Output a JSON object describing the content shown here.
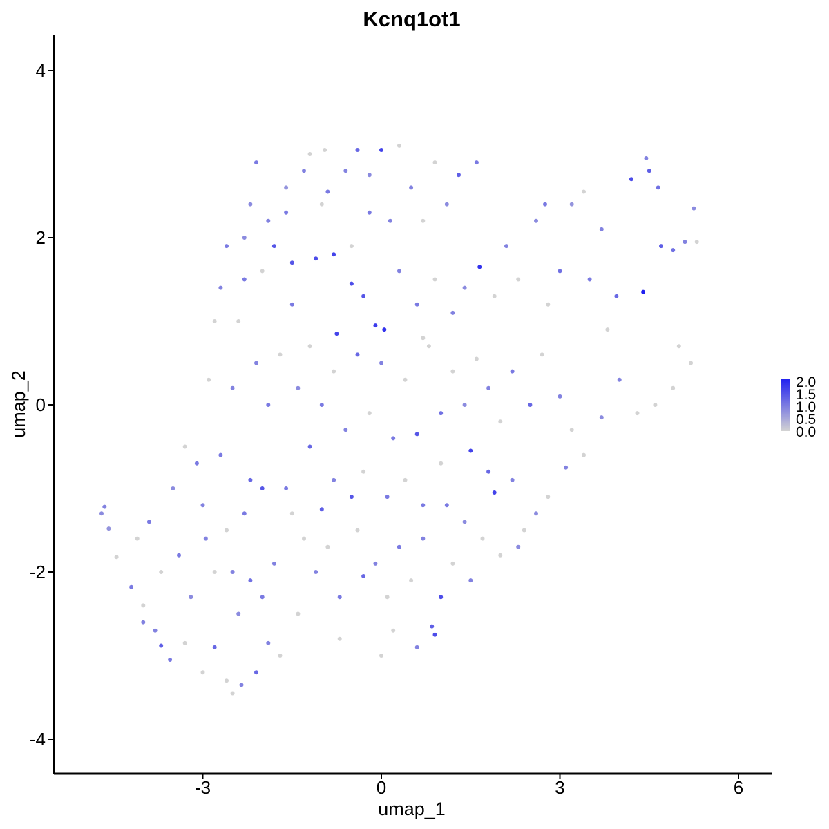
{
  "chart_data": {
    "type": "scatter",
    "title": "Kcnq1ot1",
    "xlabel": "umap_1",
    "ylabel": "umap_2",
    "xlim": [
      -5.5,
      6.6
    ],
    "ylim": [
      -4.4,
      4.4
    ],
    "xticks": [
      -3,
      0,
      3,
      6
    ],
    "xtick_labels": [
      "-3",
      "0",
      "3",
      "6"
    ],
    "yticks": [
      -4,
      -2,
      0,
      2,
      4
    ],
    "ytick_labels": [
      "-4",
      "-2",
      "0",
      "2",
      "4"
    ],
    "grid": false,
    "color_scale": {
      "low": "#d3d3d3",
      "high": "#2020f0",
      "min": 0,
      "max": 2.0,
      "breaks": [
        0.0,
        0.5,
        1.0,
        1.5,
        2.0
      ],
      "labels": [
        "0.0",
        "0.5",
        "1.0",
        "1.5",
        "2.0"
      ],
      "legend_position": "right"
    },
    "points": [
      [
        -4.7,
        -1.3,
        0.8
      ],
      [
        -4.65,
        -1.22,
        0.9
      ],
      [
        -4.58,
        -1.48,
        0.7
      ],
      [
        -4.45,
        -1.82,
        0.0
      ],
      [
        -4.2,
        -2.18,
        1.0
      ],
      [
        -4.0,
        -2.6,
        0.9
      ],
      [
        -3.7,
        -2.88,
        1.3
      ],
      [
        -3.55,
        -3.05,
        1.0
      ],
      [
        -3.4,
        -1.8,
        1.0
      ],
      [
        -3.2,
        -2.3,
        0.8
      ],
      [
        -3.1,
        -0.7,
        1.0
      ],
      [
        -2.95,
        -1.6,
        0.9
      ],
      [
        -2.8,
        -2.9,
        1.2
      ],
      [
        -2.6,
        -3.3,
        0.0
      ],
      [
        -2.5,
        -3.45,
        0.0
      ],
      [
        -2.35,
        -3.35,
        0.9
      ],
      [
        -2.2,
        -2.1,
        1.1
      ],
      [
        -2.1,
        -3.2,
        1.2
      ],
      [
        -2.0,
        -2.3,
        1.0
      ],
      [
        -1.9,
        -2.85,
        0.9
      ],
      [
        -1.7,
        -3.0,
        0.0
      ],
      [
        -2.7,
        -0.6,
        1.0
      ],
      [
        -2.5,
        0.2,
        0.9
      ],
      [
        -2.3,
        1.5,
        1.0
      ],
      [
        -2.2,
        2.4,
        0.8
      ],
      [
        -2.1,
        2.9,
        1.0
      ],
      [
        -1.9,
        2.2,
        0.9
      ],
      [
        -1.8,
        1.9,
        1.4
      ],
      [
        -1.6,
        2.6,
        0.7
      ],
      [
        -1.5,
        1.7,
        1.4
      ],
      [
        -1.3,
        2.8,
        0.9
      ],
      [
        -1.2,
        3.0,
        0.0
      ],
      [
        -1.1,
        1.75,
        1.5
      ],
      [
        -0.95,
        3.05,
        0.0
      ],
      [
        -0.9,
        2.55,
        1.0
      ],
      [
        -0.8,
        1.8,
        1.6
      ],
      [
        -0.75,
        0.85,
        1.6
      ],
      [
        -0.6,
        2.8,
        0.9
      ],
      [
        -0.5,
        1.45,
        1.5
      ],
      [
        -0.4,
        3.05,
        1.2
      ],
      [
        -0.3,
        1.3,
        1.4
      ],
      [
        -0.2,
        2.75,
        0.8
      ],
      [
        -0.1,
        0.95,
        1.7
      ],
      [
        0.0,
        3.05,
        1.6
      ],
      [
        0.05,
        0.9,
        1.8
      ],
      [
        0.15,
        2.2,
        0.9
      ],
      [
        0.3,
        3.1,
        0.0
      ],
      [
        0.5,
        2.6,
        0.9
      ],
      [
        0.7,
        2.2,
        0.0
      ],
      [
        0.9,
        2.9,
        0.0
      ],
      [
        1.1,
        2.4,
        0.8
      ],
      [
        1.3,
        2.75,
        1.3
      ],
      [
        1.6,
        2.9,
        1.0
      ],
      [
        1.65,
        1.65,
        1.8
      ],
      [
        1.9,
        1.3,
        0.0
      ],
      [
        2.1,
        1.9,
        0.9
      ],
      [
        2.3,
        1.5,
        0.0
      ],
      [
        2.6,
        2.2,
        0.8
      ],
      [
        2.75,
        2.4,
        1.0
      ],
      [
        2.8,
        1.2,
        0.0
      ],
      [
        3.0,
        1.6,
        1.1
      ],
      [
        3.2,
        2.4,
        0.7
      ],
      [
        3.4,
        2.55,
        0.0
      ],
      [
        3.5,
        1.5,
        1.0
      ],
      [
        3.7,
        2.1,
        0.9
      ],
      [
        3.8,
        0.9,
        0.0
      ],
      [
        3.95,
        1.3,
        1.2
      ],
      [
        4.2,
        2.7,
        1.5
      ],
      [
        4.4,
        1.35,
        2.0
      ],
      [
        4.45,
        2.95,
        0.9
      ],
      [
        4.5,
        2.8,
        1.3
      ],
      [
        4.65,
        2.6,
        1.1
      ],
      [
        4.7,
        1.9,
        1.3
      ],
      [
        4.9,
        1.85,
        1.1
      ],
      [
        5.0,
        0.7,
        0.0
      ],
      [
        5.1,
        1.95,
        0.9
      ],
      [
        5.25,
        2.35,
        0.8
      ],
      [
        5.3,
        1.95,
        0.0
      ],
      [
        5.2,
        0.5,
        0.0
      ],
      [
        4.9,
        0.2,
        0.0
      ],
      [
        4.6,
        0.0,
        0.0
      ],
      [
        4.3,
        -0.1,
        0.0
      ],
      [
        4.0,
        0.3,
        0.9
      ],
      [
        3.7,
        -0.15,
        0.8
      ],
      [
        3.4,
        -0.6,
        0.0
      ],
      [
        3.1,
        -0.75,
        0.9
      ],
      [
        2.8,
        -1.1,
        0.0
      ],
      [
        2.6,
        -1.3,
        0.8
      ],
      [
        2.4,
        -1.5,
        0.0
      ],
      [
        2.2,
        -0.9,
        0.9
      ],
      [
        1.8,
        -0.8,
        1.2
      ],
      [
        1.9,
        -1.05,
        1.6
      ],
      [
        1.5,
        -0.55,
        1.6
      ],
      [
        1.4,
        -1.4,
        0.8
      ],
      [
        1.1,
        -1.2,
        1.0
      ],
      [
        1.0,
        -2.3,
        1.5
      ],
      [
        0.85,
        -2.65,
        1.3
      ],
      [
        0.9,
        -2.75,
        1.5
      ],
      [
        0.6,
        -2.9,
        0.9
      ],
      [
        0.2,
        -2.7,
        0.0
      ],
      [
        0.0,
        -3.0,
        0.0
      ],
      [
        -0.3,
        -2.05,
        1.2
      ],
      [
        -0.5,
        -1.1,
        1.4
      ],
      [
        -0.7,
        -2.8,
        0.0
      ],
      [
        -1.0,
        -1.25,
        1.3
      ],
      [
        -1.2,
        -0.5,
        1.2
      ],
      [
        -1.4,
        -2.5,
        0.0
      ],
      [
        -1.6,
        -1.0,
        1.0
      ],
      [
        -1.8,
        -1.9,
        0.9
      ],
      [
        -2.0,
        -1.0,
        1.4
      ],
      [
        -2.2,
        -0.9,
        1.2
      ],
      [
        -2.4,
        -2.5,
        0.8
      ],
      [
        -2.6,
        -1.5,
        0.0
      ],
      [
        -2.8,
        -2.0,
        0.0
      ],
      [
        -3.0,
        -1.2,
        0.9
      ],
      [
        -3.3,
        -0.5,
        0.0
      ],
      [
        -3.5,
        -1.0,
        0.8
      ],
      [
        -3.7,
        -2.0,
        0.0
      ],
      [
        -3.9,
        -1.4,
        1.0
      ],
      [
        -4.1,
        -1.6,
        0.0
      ],
      [
        -4.0,
        -2.4,
        0.0
      ],
      [
        -3.8,
        -2.7,
        0.9
      ],
      [
        -3.3,
        -2.85,
        0.0
      ],
      [
        -3.0,
        -3.2,
        0.0
      ],
      [
        -2.9,
        0.3,
        0.0
      ],
      [
        -2.8,
        1.0,
        0.0
      ],
      [
        -2.7,
        1.4,
        0.9
      ],
      [
        -2.6,
        1.9,
        1.0
      ],
      [
        -2.4,
        1.0,
        0.0
      ],
      [
        -2.1,
        0.5,
        0.9
      ],
      [
        -1.9,
        0.0,
        1.0
      ],
      [
        -1.7,
        0.6,
        0.0
      ],
      [
        -1.5,
        1.2,
        1.0
      ],
      [
        -1.4,
        0.2,
        0.8
      ],
      [
        -1.2,
        0.7,
        0.0
      ],
      [
        -1.0,
        0.0,
        1.0
      ],
      [
        -0.8,
        0.4,
        0.0
      ],
      [
        -0.6,
        -0.3,
        0.9
      ],
      [
        -0.4,
        0.6,
        1.2
      ],
      [
        -0.2,
        -0.1,
        0.0
      ],
      [
        0.0,
        0.5,
        0.9
      ],
      [
        0.2,
        -0.4,
        1.0
      ],
      [
        0.4,
        0.3,
        0.0
      ],
      [
        0.6,
        -0.35,
        1.4
      ],
      [
        0.8,
        0.7,
        0.0
      ],
      [
        1.0,
        -0.1,
        1.1
      ],
      [
        1.2,
        0.4,
        0.0
      ],
      [
        1.4,
        0.0,
        0.8
      ],
      [
        1.6,
        0.55,
        0.0
      ],
      [
        1.8,
        0.2,
        0.9
      ],
      [
        2.0,
        -0.2,
        0.0
      ],
      [
        2.2,
        0.4,
        1.0
      ],
      [
        2.5,
        0.0,
        1.2
      ],
      [
        2.7,
        0.6,
        0.0
      ],
      [
        3.0,
        0.1,
        0.9
      ],
      [
        3.2,
        -0.3,
        0.0
      ],
      [
        -0.5,
        1.9,
        0.0
      ],
      [
        0.3,
        1.6,
        0.9
      ],
      [
        0.6,
        1.2,
        1.0
      ],
      [
        0.9,
        1.5,
        0.0
      ],
      [
        1.2,
        1.1,
        0.9
      ],
      [
        1.4,
        1.4,
        0.8
      ],
      [
        0.7,
        0.8,
        0.0
      ],
      [
        -0.2,
        2.3,
        1.0
      ],
      [
        -1.0,
        2.4,
        0.0
      ],
      [
        -1.6,
        2.3,
        1.0
      ],
      [
        -2.0,
        1.6,
        0.0
      ],
      [
        -2.3,
        2.0,
        0.8
      ],
      [
        -1.3,
        -1.6,
        0.0
      ],
      [
        -1.1,
        -2.0,
        0.9
      ],
      [
        -0.9,
        -1.7,
        0.0
      ],
      [
        -0.7,
        -2.3,
        1.0
      ],
      [
        -0.4,
        -1.5,
        0.0
      ],
      [
        -0.1,
        -1.9,
        0.9
      ],
      [
        0.1,
        -2.3,
        0.0
      ],
      [
        0.3,
        -1.7,
        1.0
      ],
      [
        0.5,
        -2.1,
        0.0
      ],
      [
        0.7,
        -1.6,
        0.9
      ],
      [
        1.2,
        -1.9,
        0.0
      ],
      [
        1.5,
        -2.1,
        0.9
      ],
      [
        1.7,
        -1.6,
        0.0
      ],
      [
        2.0,
        -1.8,
        0.0
      ],
      [
        2.3,
        -1.7,
        0.8
      ],
      [
        -0.3,
        -0.8,
        0.0
      ],
      [
        0.1,
        -1.1,
        1.0
      ],
      [
        0.4,
        -0.9,
        0.0
      ],
      [
        0.7,
        -1.2,
        1.0
      ],
      [
        1.0,
        -0.7,
        0.0
      ],
      [
        -0.8,
        -0.9,
        0.9
      ],
      [
        -1.5,
        -1.3,
        0.0
      ],
      [
        -2.3,
        -1.3,
        1.0
      ],
      [
        -2.5,
        -2.0,
        0.9
      ]
    ]
  }
}
